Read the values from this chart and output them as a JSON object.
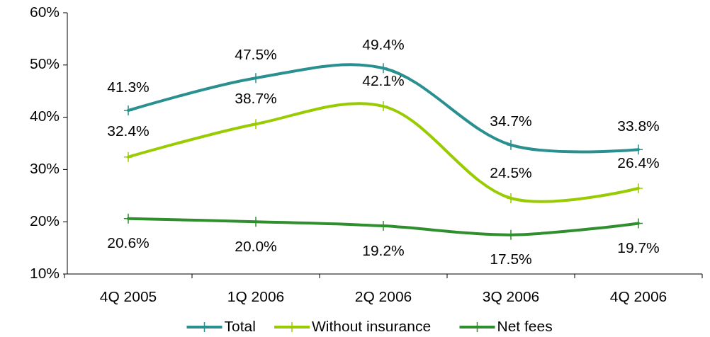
{
  "chart_data": {
    "type": "line",
    "categories": [
      "4Q 2005",
      "1Q 2006",
      "2Q 2006",
      "3Q 2006",
      "4Q 2006"
    ],
    "series": [
      {
        "name": "Total",
        "color": "#2a8f8f",
        "values": [
          41.3,
          47.5,
          49.4,
          34.7,
          33.8
        ],
        "value_labels": [
          "41.3%",
          "47.5%",
          "49.4%",
          "34.7%",
          "33.8%"
        ]
      },
      {
        "name": "Without insurance",
        "color": "#99cc00",
        "values": [
          32.4,
          38.7,
          42.1,
          24.5,
          26.4
        ],
        "value_labels": [
          "32.4%",
          "38.7%",
          "42.1%",
          "24.5%",
          "26.4%"
        ]
      },
      {
        "name": "Net fees",
        "color": "#2f8f2f",
        "values": [
          20.6,
          20.0,
          19.2,
          17.5,
          19.7
        ],
        "value_labels": [
          "20.6%",
          "20.0%",
          "19.2%",
          "17.5%",
          "19.7%"
        ]
      }
    ],
    "ylim": [
      10,
      60
    ],
    "yticks": [
      {
        "value": 10,
        "label": "10%"
      },
      {
        "value": 20,
        "label": "20%"
      },
      {
        "value": 30,
        "label": "30%"
      },
      {
        "value": 40,
        "label": "40%"
      },
      {
        "value": 50,
        "label": "50%"
      },
      {
        "value": 60,
        "label": "60%"
      }
    ],
    "marker": "cross",
    "legend": "bottom",
    "grid": false
  }
}
